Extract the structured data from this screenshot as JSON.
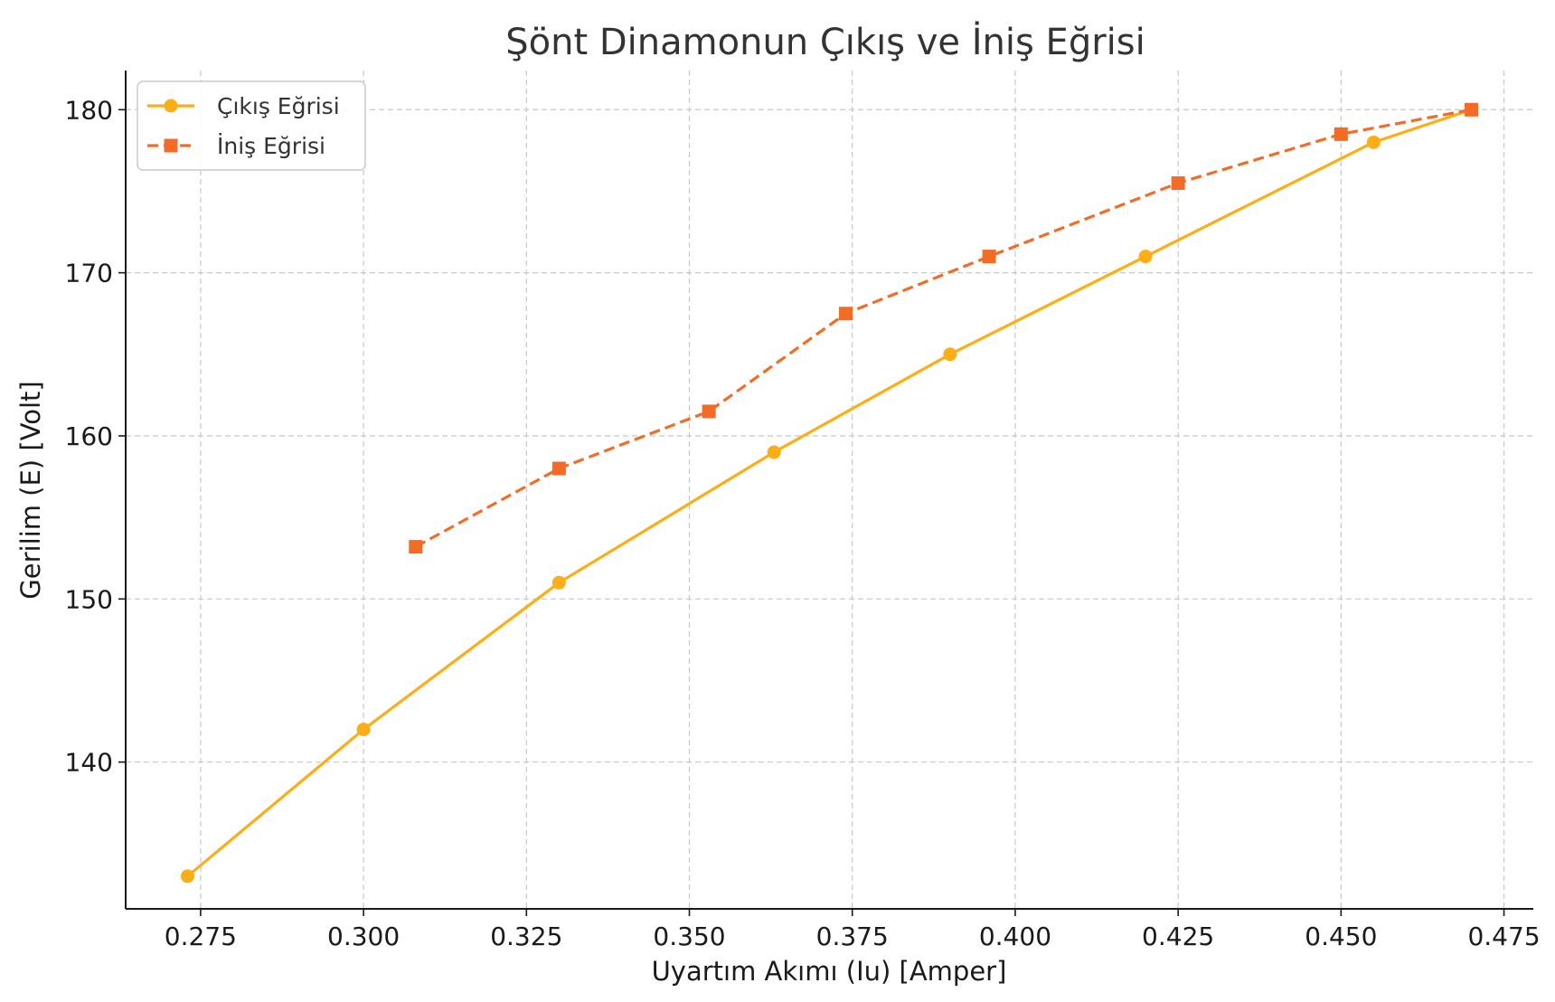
{
  "chart_data": {
    "type": "line",
    "title": "Şönt Dinamonun Çıkış ve İniş Eğrisi",
    "xlabel": "Uyartım Akımı (Iu) [Amper]",
    "ylabel": "Gerilim (E) [Volt]",
    "xlim": [
      0.2635,
      0.4795
    ],
    "ylim": [
      131.0,
      182.4
    ],
    "xticks": [
      0.275,
      0.3,
      0.325,
      0.35,
      0.375,
      0.4,
      0.425,
      0.45,
      0.475
    ],
    "xtick_labels": [
      "0.275",
      "0.300",
      "0.325",
      "0.350",
      "0.375",
      "0.400",
      "0.425",
      "0.450",
      "0.475"
    ],
    "yticks": [
      140,
      150,
      160,
      170,
      180
    ],
    "ytick_labels": [
      "140",
      "150",
      "160",
      "170",
      "180"
    ],
    "grid": true,
    "legend_position": "top-left",
    "series": [
      {
        "name": "Çıkış Eğrisi",
        "color": "#FBAE17",
        "marker": "circle",
        "line_style": "solid",
        "points": [
          {
            "x": 0.273,
            "y": 133.0
          },
          {
            "x": 0.3,
            "y": 142.0
          },
          {
            "x": 0.33,
            "y": 151.0
          },
          {
            "x": 0.363,
            "y": 159.0
          },
          {
            "x": 0.39,
            "y": 165.0
          },
          {
            "x": 0.42,
            "y": 171.0
          },
          {
            "x": 0.455,
            "y": 178.0
          },
          {
            "x": 0.47,
            "y": 180.0
          }
        ]
      },
      {
        "name": "İniş Eğrisi",
        "color": "#F26C28",
        "marker": "square",
        "line_style": "dashed",
        "points": [
          {
            "x": 0.308,
            "y": 153.2
          },
          {
            "x": 0.33,
            "y": 158.0
          },
          {
            "x": 0.353,
            "y": 161.5
          },
          {
            "x": 0.374,
            "y": 167.5
          },
          {
            "x": 0.396,
            "y": 171.0
          },
          {
            "x": 0.425,
            "y": 175.5
          },
          {
            "x": 0.45,
            "y": 178.5
          },
          {
            "x": 0.47,
            "y": 180.0
          }
        ]
      }
    ]
  }
}
